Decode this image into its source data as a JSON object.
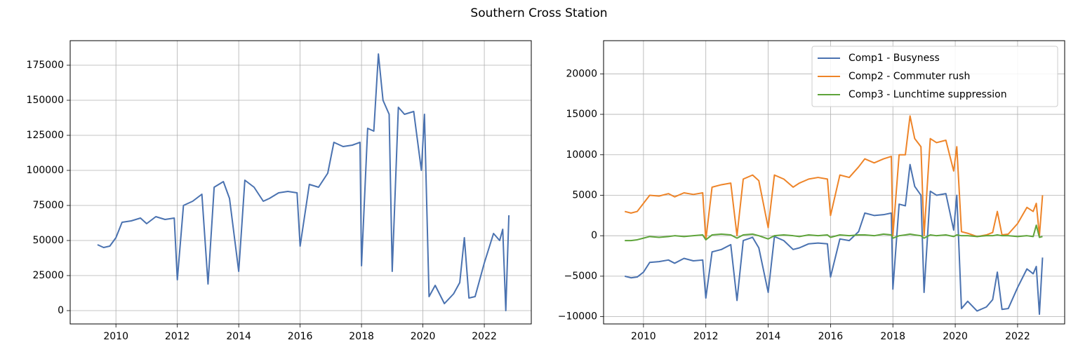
{
  "title": "Southern Cross Station",
  "chart_data": [
    {
      "type": "line",
      "color": "#4a72b0",
      "grid": true,
      "x": [
        2009.4,
        2009.6,
        2009.8,
        2010.0,
        2010.2,
        2010.5,
        2010.8,
        2011.0,
        2011.3,
        2011.6,
        2011.9,
        2012.0,
        2012.2,
        2012.5,
        2012.8,
        2013.0,
        2013.2,
        2013.5,
        2013.7,
        2014.0,
        2014.2,
        2014.5,
        2014.8,
        2015.0,
        2015.3,
        2015.6,
        2015.9,
        2016.0,
        2016.3,
        2016.6,
        2016.9,
        2017.1,
        2017.4,
        2017.7,
        2017.95,
        2018.0,
        2018.2,
        2018.4,
        2018.55,
        2018.7,
        2018.9,
        2019.0,
        2019.2,
        2019.4,
        2019.7,
        2019.95,
        2020.05,
        2020.2,
        2020.4,
        2020.7,
        2021.0,
        2021.2,
        2021.35,
        2021.5,
        2021.7,
        2022.0,
        2022.3,
        2022.5,
        2022.6,
        2022.7,
        2022.8
      ],
      "values": [
        47000,
        45000,
        46000,
        52000,
        63000,
        64000,
        66000,
        62000,
        67000,
        65000,
        66000,
        22000,
        75000,
        78000,
        83000,
        19000,
        88000,
        92000,
        80000,
        28000,
        93000,
        88000,
        78000,
        80000,
        84000,
        85000,
        84000,
        46000,
        90000,
        88000,
        98000,
        120000,
        117000,
        118000,
        120000,
        32000,
        130000,
        128000,
        183000,
        150000,
        140000,
        28000,
        145000,
        140000,
        142000,
        100000,
        140000,
        10000,
        18000,
        5000,
        12000,
        20000,
        52000,
        9000,
        10000,
        34000,
        55000,
        50000,
        58000,
        0,
        68000
      ],
      "xlim": [
        2008.51,
        2023.53
      ],
      "xticks": [
        2010,
        2012,
        2014,
        2016,
        2018,
        2020,
        2022
      ],
      "ylim": [
        -9500,
        192500
      ],
      "yticks": [
        0,
        25000,
        50000,
        75000,
        100000,
        125000,
        150000,
        175000
      ]
    },
    {
      "type": "line",
      "grid": true,
      "legend": "upper right",
      "x": [
        2009.4,
        2009.6,
        2009.8,
        2010.0,
        2010.2,
        2010.5,
        2010.8,
        2011.0,
        2011.3,
        2011.6,
        2011.9,
        2012.0,
        2012.2,
        2012.5,
        2012.8,
        2013.0,
        2013.2,
        2013.5,
        2013.7,
        2014.0,
        2014.2,
        2014.5,
        2014.8,
        2015.0,
        2015.3,
        2015.6,
        2015.9,
        2016.0,
        2016.3,
        2016.6,
        2016.9,
        2017.1,
        2017.4,
        2017.7,
        2017.95,
        2018.0,
        2018.2,
        2018.4,
        2018.55,
        2018.7,
        2018.9,
        2019.0,
        2019.2,
        2019.4,
        2019.7,
        2019.95,
        2020.05,
        2020.2,
        2020.4,
        2020.7,
        2021.0,
        2021.2,
        2021.35,
        2021.5,
        2021.7,
        2022.0,
        2022.3,
        2022.5,
        2022.6,
        2022.7,
        2022.8
      ],
      "series": [
        {
          "name": "Comp1 - Busyness",
          "color": "#4a72b0",
          "values": [
            -5000,
            -5200,
            -5100,
            -4500,
            -3300,
            -3200,
            -3000,
            -3400,
            -2800,
            -3100,
            -3000,
            -7700,
            -2000,
            -1700,
            -1100,
            -8000,
            -600,
            -200,
            -1500,
            -7000,
            -100,
            -600,
            -1700,
            -1500,
            -1000,
            -900,
            -1000,
            -5100,
            -400,
            -600,
            500,
            2800,
            2500,
            2600,
            2800,
            -6600,
            3900,
            3700,
            8800,
            6100,
            5000,
            -7000,
            5500,
            5000,
            5200,
            700,
            5000,
            -9000,
            -8100,
            -9300,
            -8800,
            -7900,
            -4500,
            -9100,
            -9000,
            -6400,
            -4100,
            -4700,
            -3800,
            -9700,
            -2700
          ]
        },
        {
          "name": "Comp2 - Commuter rush",
          "color": "#ee8428",
          "values": [
            3000,
            2800,
            3000,
            4000,
            5000,
            4900,
            5200,
            4800,
            5300,
            5100,
            5300,
            -500,
            6000,
            6300,
            6500,
            0,
            7000,
            7500,
            6800,
            1000,
            7500,
            7000,
            6000,
            6500,
            7000,
            7200,
            7000,
            2500,
            7500,
            7200,
            8500,
            9500,
            9000,
            9500,
            9800,
            0,
            10000,
            10000,
            14800,
            12000,
            11000,
            0,
            12000,
            11500,
            11800,
            8000,
            11000,
            500,
            300,
            -100,
            100,
            400,
            3000,
            100,
            200,
            1500,
            3500,
            3000,
            4000,
            0,
            5000
          ]
        },
        {
          "name": "Comp3 - Lunchtime suppression",
          "color": "#5ea43a",
          "values": [
            -600,
            -600,
            -500,
            -300,
            -100,
            -200,
            -100,
            0,
            -100,
            0,
            100,
            -500,
            100,
            200,
            100,
            -300,
            100,
            200,
            0,
            -400,
            0,
            100,
            0,
            -100,
            100,
            0,
            100,
            -200,
            100,
            0,
            100,
            100,
            0,
            200,
            100,
            -300,
            0,
            100,
            200,
            100,
            0,
            -300,
            100,
            0,
            100,
            -100,
            100,
            0,
            0,
            -100,
            0,
            0,
            100,
            0,
            0,
            -100,
            0,
            -100,
            1300,
            -200,
            -100
          ]
        }
      ],
      "xlim": [
        2008.72,
        2023.51
      ],
      "xticks": [
        2010,
        2012,
        2014,
        2016,
        2018,
        2020,
        2022
      ],
      "ylim": [
        -10900,
        24100
      ],
      "yticks": [
        {
          "value": -10000,
          "label": "−10000"
        },
        {
          "value": -5000,
          "label": "−5000"
        },
        0,
        5000,
        10000,
        15000,
        20000
      ]
    }
  ]
}
